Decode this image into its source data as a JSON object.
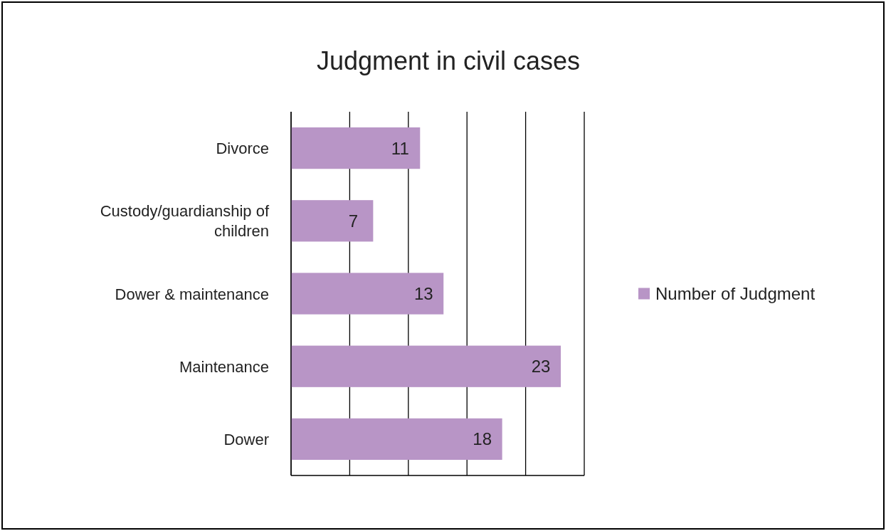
{
  "chart_data": {
    "type": "bar",
    "orientation": "horizontal",
    "title": "Judgment in civil cases",
    "categories": [
      "Divorce",
      "Custody/guardianship of children",
      "Dower & maintenance",
      "Maintenance",
      "Dower"
    ],
    "series": [
      {
        "name": "Number of Judgment",
        "color": "#b895c6",
        "values": [
          11,
          7,
          13,
          23,
          18
        ]
      }
    ],
    "xlim": [
      0,
      25
    ],
    "xticks": [
      {
        "value": 0,
        "label": null
      },
      {
        "value": 5,
        "label": null
      },
      {
        "value": 10,
        "label": null
      },
      {
        "value": 15,
        "label": null
      },
      {
        "value": 20,
        "label": null
      },
      {
        "value": 25,
        "label": null
      }
    ],
    "tick_labels": "y",
    "grid": "x",
    "legend": "right",
    "data_labels": true
  }
}
